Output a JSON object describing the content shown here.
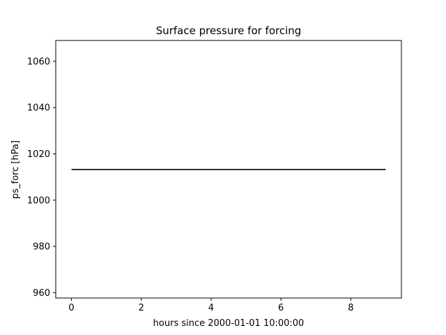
{
  "chart_data": {
    "type": "line",
    "title": "Surface pressure for forcing",
    "xlabel": "hours since 2000-01-01 10:00:00",
    "ylabel": "ps_forc [hPa]",
    "xlim": [
      -0.45,
      9.45
    ],
    "ylim": [
      957.7,
      1069.0
    ],
    "xticks": [
      0,
      2,
      4,
      6,
      8
    ],
    "yticks": [
      960,
      980,
      1000,
      1020,
      1040,
      1060
    ],
    "grid": false,
    "series": [
      {
        "color": "#000000",
        "x": [
          0,
          1,
          2,
          3,
          4,
          5,
          6,
          7,
          8,
          9
        ],
        "y": [
          1013.25,
          1013.25,
          1013.25,
          1013.25,
          1013.25,
          1013.25,
          1013.25,
          1013.25,
          1013.25,
          1013.25
        ]
      }
    ]
  }
}
